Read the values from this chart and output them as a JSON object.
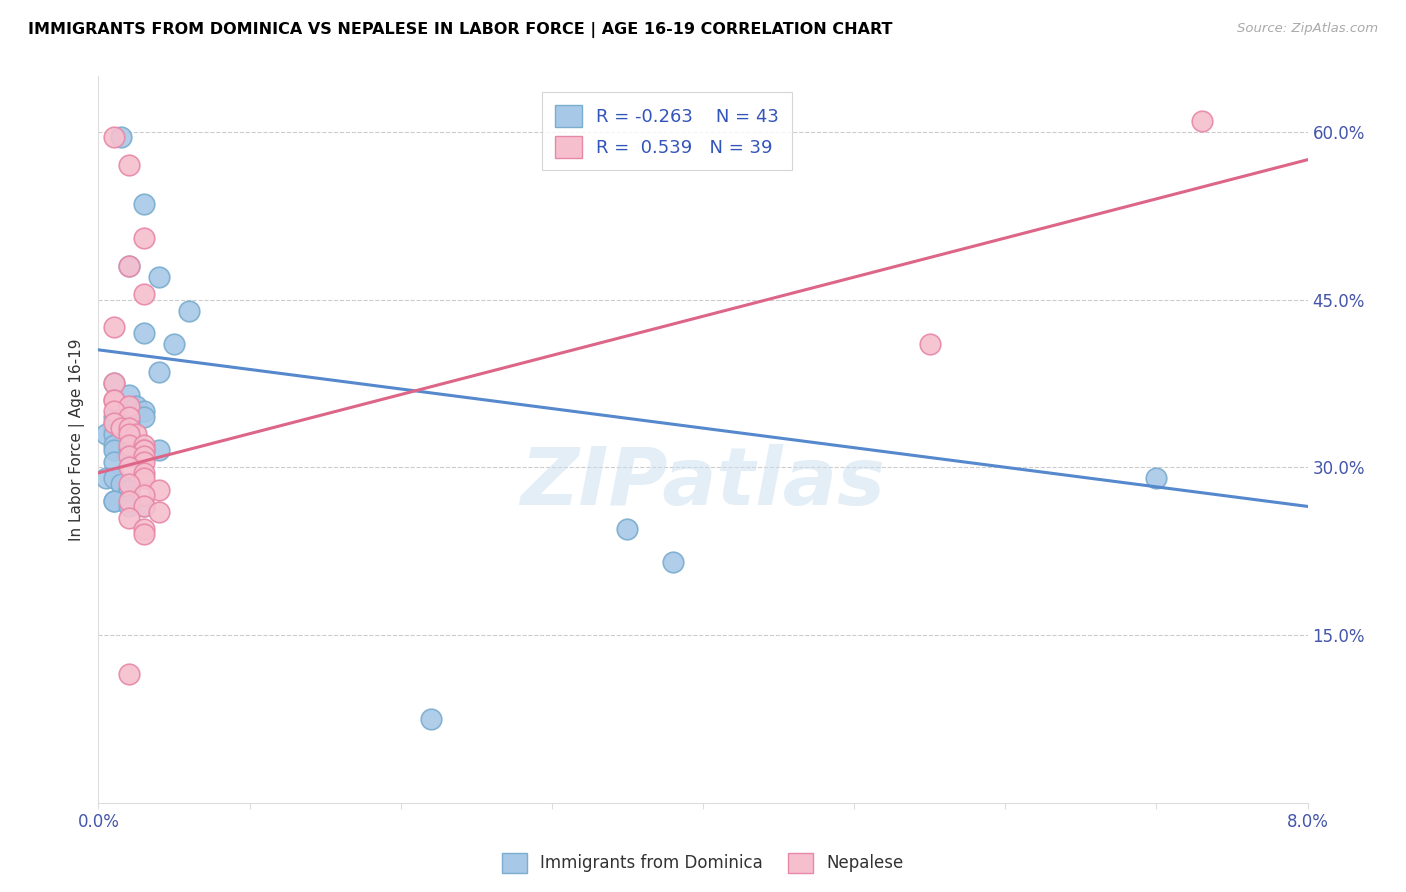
{
  "title": "IMMIGRANTS FROM DOMINICA VS NEPALESE IN LABOR FORCE | AGE 16-19 CORRELATION CHART",
  "source": "Source: ZipAtlas.com",
  "ylabel": "In Labor Force | Age 16-19",
  "xlim": [
    0.0,
    0.08
  ],
  "ylim": [
    0.0,
    0.65
  ],
  "x_ticks": [
    0.0,
    0.01,
    0.02,
    0.03,
    0.04,
    0.05,
    0.06,
    0.07,
    0.08
  ],
  "x_tick_labels": [
    "0.0%",
    "",
    "",
    "",
    "",
    "",
    "",
    "",
    "8.0%"
  ],
  "y_ticks_right": [
    0.15,
    0.3,
    0.45,
    0.6
  ],
  "y_tick_labels_right": [
    "15.0%",
    "30.0%",
    "45.0%",
    "60.0%"
  ],
  "blue_color": "#a8c8e8",
  "blue_edge_color": "#7aadce",
  "pink_color": "#f5bfce",
  "pink_edge_color": "#e888a8",
  "blue_line_color": "#5588cc",
  "pink_line_color": "#dd6688",
  "R_blue": -0.263,
  "N_blue": 43,
  "R_pink": 0.539,
  "N_pink": 39,
  "legend_label_blue": "Immigrants from Dominica",
  "legend_label_pink": "Nepalese",
  "watermark": "ZIPatlas",
  "blue_line_x0": 0.0,
  "blue_line_y0": 0.405,
  "blue_line_x1": 0.08,
  "blue_line_y1": 0.265,
  "pink_line_x0": 0.0,
  "pink_line_y0": 0.295,
  "pink_line_x1": 0.08,
  "pink_line_y1": 0.575,
  "blue_scatter_x": [
    0.0015,
    0.003,
    0.002,
    0.004,
    0.006,
    0.003,
    0.005,
    0.004,
    0.001,
    0.002,
    0.0025,
    0.003,
    0.003,
    0.001,
    0.001,
    0.002,
    0.001,
    0.001,
    0.0005,
    0.001,
    0.002,
    0.0015,
    0.002,
    0.001,
    0.001,
    0.002,
    0.002,
    0.001,
    0.0005,
    0.001,
    0.0015,
    0.002,
    0.002,
    0.001,
    0.001,
    0.002,
    0.003,
    0.0025,
    0.004,
    0.035,
    0.07,
    0.038,
    0.022
  ],
  "blue_scatter_y": [
    0.595,
    0.535,
    0.48,
    0.47,
    0.44,
    0.42,
    0.41,
    0.385,
    0.375,
    0.365,
    0.355,
    0.35,
    0.345,
    0.345,
    0.34,
    0.34,
    0.335,
    0.335,
    0.33,
    0.33,
    0.325,
    0.32,
    0.32,
    0.32,
    0.315,
    0.315,
    0.31,
    0.305,
    0.29,
    0.29,
    0.285,
    0.28,
    0.28,
    0.27,
    0.27,
    0.265,
    0.265,
    0.32,
    0.315,
    0.245,
    0.29,
    0.215,
    0.075
  ],
  "pink_scatter_x": [
    0.001,
    0.002,
    0.003,
    0.002,
    0.003,
    0.001,
    0.001,
    0.001,
    0.001,
    0.002,
    0.001,
    0.002,
    0.001,
    0.0015,
    0.002,
    0.0025,
    0.002,
    0.002,
    0.003,
    0.003,
    0.003,
    0.002,
    0.003,
    0.003,
    0.002,
    0.003,
    0.003,
    0.002,
    0.004,
    0.003,
    0.002,
    0.003,
    0.004,
    0.002,
    0.003,
    0.003,
    0.002,
    0.073,
    0.055
  ],
  "pink_scatter_y": [
    0.595,
    0.57,
    0.505,
    0.48,
    0.455,
    0.425,
    0.375,
    0.36,
    0.36,
    0.355,
    0.35,
    0.345,
    0.34,
    0.335,
    0.335,
    0.33,
    0.33,
    0.32,
    0.32,
    0.315,
    0.315,
    0.31,
    0.31,
    0.305,
    0.3,
    0.295,
    0.29,
    0.285,
    0.28,
    0.275,
    0.27,
    0.265,
    0.26,
    0.255,
    0.245,
    0.24,
    0.115,
    0.61,
    0.41
  ]
}
